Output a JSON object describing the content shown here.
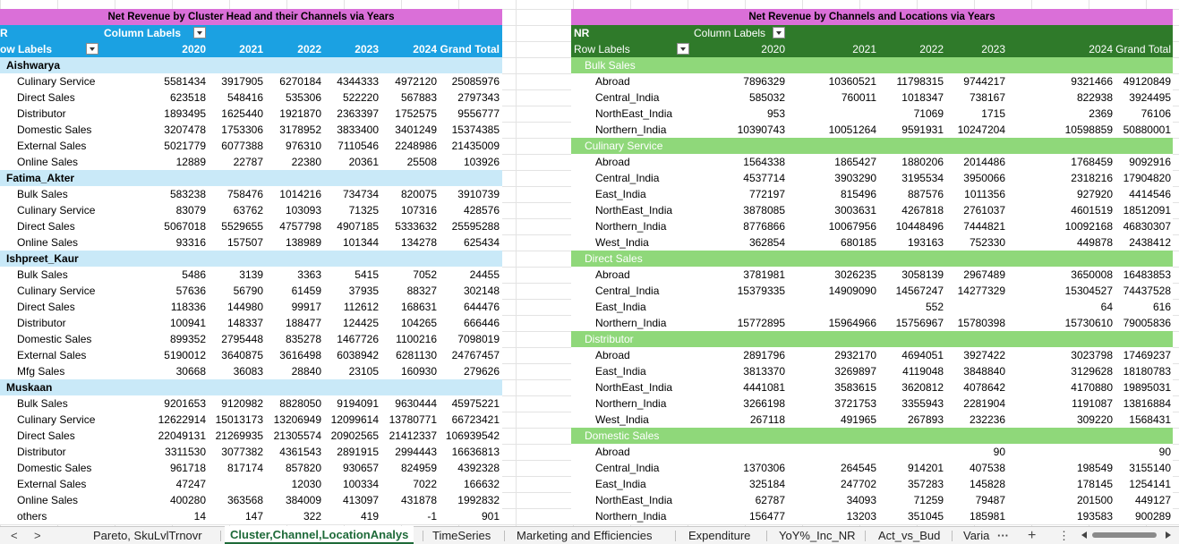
{
  "left_pivot": {
    "title": "Net Revenue by Cluster Head and their Channels via Years",
    "value_field": "R",
    "column_labels": "Column Labels",
    "row_labels": "ow Labels",
    "years": [
      "2020",
      "2021",
      "2022",
      "2023",
      "2024"
    ],
    "grand_total_label": "Grand Total",
    "rows": [
      {
        "t": "g",
        "label": "Aishwarya"
      },
      {
        "t": "d",
        "label": "Culinary Service",
        "v": [
          "5581434",
          "3917905",
          "6270184",
          "4344333",
          "4972120",
          "25085976"
        ]
      },
      {
        "t": "d",
        "label": "Direct Sales",
        "v": [
          "623518",
          "548416",
          "535306",
          "522220",
          "567883",
          "2797343"
        ]
      },
      {
        "t": "d",
        "label": "Distributor",
        "v": [
          "1893495",
          "1625440",
          "1921870",
          "2363397",
          "1752575",
          "9556777"
        ]
      },
      {
        "t": "d",
        "label": "Domestic Sales",
        "v": [
          "3207478",
          "1753306",
          "3178952",
          "3833400",
          "3401249",
          "15374385"
        ]
      },
      {
        "t": "d",
        "label": "External Sales",
        "v": [
          "5021779",
          "6077388",
          "976310",
          "7110546",
          "2248986",
          "21435009"
        ]
      },
      {
        "t": "d",
        "label": "Online Sales",
        "v": [
          "12889",
          "22787",
          "22380",
          "20361",
          "25508",
          "103926"
        ]
      },
      {
        "t": "g",
        "label": "Fatima_Akter"
      },
      {
        "t": "d",
        "label": "Bulk Sales",
        "v": [
          "583238",
          "758476",
          "1014216",
          "734734",
          "820075",
          "3910739"
        ]
      },
      {
        "t": "d",
        "label": "Culinary Service",
        "v": [
          "83079",
          "63762",
          "103093",
          "71325",
          "107316",
          "428576"
        ]
      },
      {
        "t": "d",
        "label": "Direct Sales",
        "v": [
          "5067018",
          "5529655",
          "4757798",
          "4907185",
          "5333632",
          "25595288"
        ]
      },
      {
        "t": "d",
        "label": "Online Sales",
        "v": [
          "93316",
          "157507",
          "138989",
          "101344",
          "134278",
          "625434"
        ]
      },
      {
        "t": "g",
        "label": "Ishpreet_Kaur"
      },
      {
        "t": "d",
        "label": "Bulk Sales",
        "v": [
          "5486",
          "3139",
          "3363",
          "5415",
          "7052",
          "24455"
        ]
      },
      {
        "t": "d",
        "label": "Culinary Service",
        "v": [
          "57636",
          "56790",
          "61459",
          "37935",
          "88327",
          "302148"
        ]
      },
      {
        "t": "d",
        "label": "Direct Sales",
        "v": [
          "118336",
          "144980",
          "99917",
          "112612",
          "168631",
          "644476"
        ]
      },
      {
        "t": "d",
        "label": "Distributor",
        "v": [
          "100941",
          "148337",
          "188477",
          "124425",
          "104265",
          "666446"
        ]
      },
      {
        "t": "d",
        "label": "Domestic Sales",
        "v": [
          "899352",
          "2795448",
          "835278",
          "1467726",
          "1100216",
          "7098019"
        ]
      },
      {
        "t": "d",
        "label": "External Sales",
        "v": [
          "5190012",
          "3640875",
          "3616498",
          "6038942",
          "6281130",
          "24767457"
        ]
      },
      {
        "t": "d",
        "label": "Mfg Sales",
        "v": [
          "30668",
          "36083",
          "28840",
          "23105",
          "160930",
          "279626"
        ]
      },
      {
        "t": "g",
        "label": "Muskaan"
      },
      {
        "t": "d",
        "label": "Bulk Sales",
        "v": [
          "9201653",
          "9120982",
          "8828050",
          "9194091",
          "9630444",
          "45975221"
        ]
      },
      {
        "t": "d",
        "label": "Culinary Service",
        "v": [
          "12622914",
          "15013173",
          "13206949",
          "12099614",
          "13780771",
          "66723421"
        ]
      },
      {
        "t": "d",
        "label": "Direct Sales",
        "v": [
          "22049131",
          "21269935",
          "21305574",
          "20902565",
          "21412337",
          "106939542"
        ]
      },
      {
        "t": "d",
        "label": "Distributor",
        "v": [
          "3311530",
          "3077382",
          "4361543",
          "2891915",
          "2994443",
          "16636813"
        ]
      },
      {
        "t": "d",
        "label": "Domestic Sales",
        "v": [
          "961718",
          "817174",
          "857820",
          "930657",
          "824959",
          "4392328"
        ]
      },
      {
        "t": "d",
        "label": "External Sales",
        "v": [
          "47247",
          "",
          "12030",
          "100334",
          "7022",
          "166632"
        ]
      },
      {
        "t": "d",
        "label": "Online Sales",
        "v": [
          "400280",
          "363568",
          "384009",
          "413097",
          "431878",
          "1992832"
        ]
      },
      {
        "t": "d",
        "label": "others",
        "v": [
          "14",
          "147",
          "322",
          "419",
          "-1",
          "901"
        ]
      }
    ]
  },
  "right_pivot": {
    "title": "Net Revenue by Channels and Locations via Years",
    "value_field": "NR",
    "column_labels": "Column Labels",
    "row_labels": "Row Labels",
    "years": [
      "2020",
      "2021",
      "2022",
      "2023",
      "2024"
    ],
    "grand_total_label": "Grand Total",
    "rows": [
      {
        "t": "g",
        "label": "Bulk Sales"
      },
      {
        "t": "d",
        "label": "Abroad",
        "v": [
          "7896329",
          "10360521",
          "11798315",
          "9744217",
          "9321466",
          "49120849"
        ]
      },
      {
        "t": "d",
        "label": "Central_India",
        "v": [
          "585032",
          "760011",
          "1018347",
          "738167",
          "822938",
          "3924495"
        ]
      },
      {
        "t": "d",
        "label": "NorthEast_India",
        "v": [
          "953",
          "",
          "71069",
          "1715",
          "2369",
          "76106"
        ]
      },
      {
        "t": "d",
        "label": "Northern_India",
        "v": [
          "10390743",
          "10051264",
          "9591931",
          "10247204",
          "10598859",
          "50880001"
        ]
      },
      {
        "t": "g",
        "label": "Culinary Service"
      },
      {
        "t": "d",
        "label": "Abroad",
        "v": [
          "1564338",
          "1865427",
          "1880206",
          "2014486",
          "1768459",
          "9092916"
        ]
      },
      {
        "t": "d",
        "label": "Central_India",
        "v": [
          "4537714",
          "3903290",
          "3195534",
          "3950066",
          "2318216",
          "17904820"
        ]
      },
      {
        "t": "d",
        "label": "East_India",
        "v": [
          "772197",
          "815496",
          "887576",
          "1011356",
          "927920",
          "4414546"
        ]
      },
      {
        "t": "d",
        "label": "NorthEast_India",
        "v": [
          "3878085",
          "3003631",
          "4267818",
          "2761037",
          "4601519",
          "18512091"
        ]
      },
      {
        "t": "d",
        "label": "Northern_India",
        "v": [
          "8776866",
          "10067956",
          "10448496",
          "7444821",
          "10092168",
          "46830307"
        ]
      },
      {
        "t": "d",
        "label": "West_India",
        "v": [
          "362854",
          "680185",
          "193163",
          "752330",
          "449878",
          "2438412"
        ]
      },
      {
        "t": "g",
        "label": "Direct Sales"
      },
      {
        "t": "d",
        "label": "Abroad",
        "v": [
          "3781981",
          "3026235",
          "3058139",
          "2967489",
          "3650008",
          "16483853"
        ]
      },
      {
        "t": "d",
        "label": "Central_India",
        "v": [
          "15379335",
          "14909090",
          "14567247",
          "14277329",
          "15304527",
          "74437528"
        ]
      },
      {
        "t": "d",
        "label": "East_India",
        "v": [
          "",
          "",
          "552",
          "",
          "64",
          "616"
        ]
      },
      {
        "t": "d",
        "label": "Northern_India",
        "v": [
          "15772895",
          "15964966",
          "15756967",
          "15780398",
          "15730610",
          "79005836"
        ]
      },
      {
        "t": "g",
        "label": "Distributor"
      },
      {
        "t": "d",
        "label": "Abroad",
        "v": [
          "2891796",
          "2932170",
          "4694051",
          "3927422",
          "3023798",
          "17469237"
        ]
      },
      {
        "t": "d",
        "label": "East_India",
        "v": [
          "3813370",
          "3269897",
          "4119048",
          "3848840",
          "3129628",
          "18180783"
        ]
      },
      {
        "t": "d",
        "label": "NorthEast_India",
        "v": [
          "4441081",
          "3583615",
          "3620812",
          "4078642",
          "4170880",
          "19895031"
        ]
      },
      {
        "t": "d",
        "label": "Northern_India",
        "v": [
          "3266198",
          "3721753",
          "3355943",
          "2281904",
          "1191087",
          "13816884"
        ]
      },
      {
        "t": "d",
        "label": "West_India",
        "v": [
          "267118",
          "491965",
          "267893",
          "232236",
          "309220",
          "1568431"
        ]
      },
      {
        "t": "g",
        "label": "Domestic Sales"
      },
      {
        "t": "d",
        "label": "Abroad",
        "v": [
          "",
          "",
          "",
          "90",
          "",
          "90"
        ]
      },
      {
        "t": "d",
        "label": "Central_India",
        "v": [
          "1370306",
          "264545",
          "914201",
          "407538",
          "198549",
          "3155140"
        ]
      },
      {
        "t": "d",
        "label": "East_India",
        "v": [
          "325184",
          "247702",
          "357283",
          "145828",
          "178145",
          "1254141"
        ]
      },
      {
        "t": "d",
        "label": "NorthEast_India",
        "v": [
          "62787",
          "34093",
          "71259",
          "79487",
          "201500",
          "449127"
        ]
      },
      {
        "t": "d",
        "label": "Northern_India",
        "v": [
          "156477",
          "13203",
          "351045",
          "185981",
          "193583",
          "900289"
        ]
      }
    ]
  },
  "sheet_tabs": [
    "Pareto, SkuLvlTrnovr",
    "Cluster,Channel,LocationAnalys",
    "TimeSeries",
    "Marketing and Efficiencies",
    "Expenditure",
    "YoY%_Inc_NR",
    "Act_vs_Bud",
    "Varia"
  ],
  "active_tab": "Cluster,Channel,LocationAnalys",
  "tabbar_icons": [
    "nav-prev-icon",
    "nav-next-icon",
    "more-icon",
    "add-sheet-icon",
    "vertical-ellipsis-icon"
  ],
  "colors": {
    "title_fill": "#da6fd8",
    "left_header": "#1ba1e2",
    "left_group": "#c9e9f8",
    "right_header": "#2f7a2a",
    "right_group": "#8fd87a",
    "active_tab": "#1e6a39"
  },
  "tabbar": {
    "more": "···",
    "add": "+",
    "vmenu": "⋮",
    "prev": "<",
    "next": ">"
  }
}
